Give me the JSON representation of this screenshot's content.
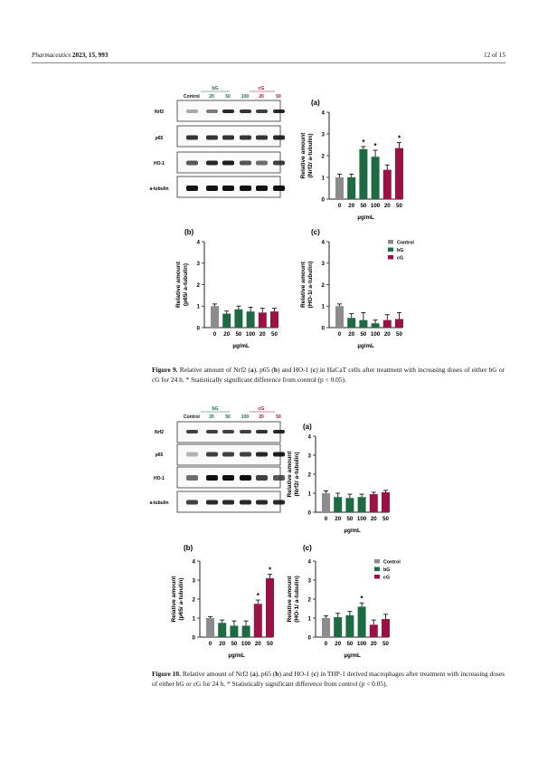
{
  "header": {
    "journal": "Pharmaceutics",
    "citation_rest": "2023, 15, 993",
    "page": "12 of 15"
  },
  "legend": {
    "items": [
      {
        "label": "Control",
        "color": "#8c8c8c"
      },
      {
        "label": "bG",
        "color": "#1e6b43"
      },
      {
        "label": "cG",
        "color": "#9b1345"
      }
    ]
  },
  "blot_labels": {
    "group_bg": "bG",
    "group_cg": "cG",
    "lanes": [
      "Control",
      "20",
      "50",
      "100",
      "20",
      "50"
    ],
    "rows": [
      "Nrf2",
      "p65",
      "HO-1",
      "a-tubulin"
    ]
  },
  "figures": [
    {
      "id": "fig9",
      "caption_label": "Figure 9.",
      "caption_parts": [
        "Relative amount of Nrf2 (",
        "a",
        "), p65 (",
        "b",
        ") and HO-1 (",
        "c",
        ") in HaCaT cells after treatment with increasing doses of either bG or cG for 24 h. * Statistically significant difference from control (p < 0.05)."
      ]
    },
    {
      "id": "fig10",
      "caption_label": "Figure 10.",
      "caption_parts": [
        "Relative amount of Nrf2 (",
        "a",
        "), p65 (",
        "b",
        ") and HO-1 (",
        "c",
        ") in THP-1 derived macrophages after treatment with increasing doses of either bG or cG for 24 h. * Statistically significant difference from control (p < 0.05)."
      ]
    }
  ],
  "chart_data": [
    {
      "id": "fig9a",
      "type": "bar",
      "panel": "(a)",
      "ylabel": "Relative amount (Nrf2/ a-tubulin)",
      "xlabel": "µg/mL",
      "categories": [
        "0",
        "20",
        "50",
        "100",
        "20",
        "50"
      ],
      "groups": [
        "Control",
        "bG",
        "bG",
        "bG",
        "cG",
        "cG"
      ],
      "values": [
        1.0,
        1.0,
        2.3,
        1.95,
        1.35,
        2.35
      ],
      "errors": [
        0.15,
        0.15,
        0.12,
        0.3,
        0.22,
        0.25
      ],
      "significant": [
        false,
        false,
        true,
        true,
        false,
        true
      ],
      "ylim": [
        0,
        4
      ],
      "yticks": [
        0,
        1,
        2,
        3,
        4
      ]
    },
    {
      "id": "fig9b",
      "type": "bar",
      "panel": "(b)",
      "ylabel": "Relative amount (p65/ a-tubulin)",
      "xlabel": "µg/mL",
      "categories": [
        "0",
        "20",
        "50",
        "100",
        "20",
        "50"
      ],
      "groups": [
        "Control",
        "bG",
        "bG",
        "bG",
        "cG",
        "cG"
      ],
      "values": [
        1.0,
        0.65,
        0.85,
        0.75,
        0.7,
        0.75
      ],
      "errors": [
        0.1,
        0.12,
        0.15,
        0.2,
        0.2,
        0.15
      ],
      "significant": [
        false,
        false,
        false,
        false,
        false,
        false
      ],
      "ylim": [
        0,
        4
      ],
      "yticks": [
        0,
        1,
        2,
        3,
        4
      ]
    },
    {
      "id": "fig9c",
      "type": "bar",
      "panel": "(c)",
      "ylabel": "Relative amount (HO-1/ a-tubulin)",
      "xlabel": "µg/mL",
      "categories": [
        "0",
        "20",
        "50",
        "100",
        "20",
        "50"
      ],
      "groups": [
        "Control",
        "bG",
        "bG",
        "bG",
        "cG",
        "cG"
      ],
      "values": [
        1.0,
        0.45,
        0.35,
        0.2,
        0.35,
        0.4
      ],
      "errors": [
        0.1,
        0.2,
        0.35,
        0.15,
        0.25,
        0.3
      ],
      "significant": [
        false,
        false,
        false,
        false,
        false,
        false
      ],
      "ylim": [
        0,
        4
      ],
      "yticks": [
        0,
        1,
        2,
        3,
        4
      ],
      "legend": true
    },
    {
      "id": "fig10a",
      "type": "bar",
      "panel": "(a)",
      "ylabel": "Relative amount (Nrf2/ a-tubulin)",
      "xlabel": "µg/mL",
      "categories": [
        "0",
        "20",
        "50",
        "100",
        "20",
        "50"
      ],
      "groups": [
        "Control",
        "bG",
        "bG",
        "bG",
        "cG",
        "cG"
      ],
      "values": [
        1.0,
        0.8,
        0.75,
        0.8,
        0.95,
        1.05
      ],
      "errors": [
        0.12,
        0.2,
        0.2,
        0.15,
        0.1,
        0.1
      ],
      "significant": [
        false,
        false,
        false,
        false,
        false,
        false
      ],
      "ylim": [
        0,
        4
      ],
      "yticks": [
        0,
        1,
        2,
        3,
        4
      ]
    },
    {
      "id": "fig10b",
      "type": "bar",
      "panel": "(b)",
      "ylabel": "Relative amount (p65/ a-tubulin)",
      "xlabel": "µg/mL",
      "categories": [
        "0",
        "20",
        "50",
        "100",
        "20",
        "50"
      ],
      "groups": [
        "Control",
        "bG",
        "bG",
        "bG",
        "cG",
        "cG"
      ],
      "values": [
        1.0,
        0.75,
        0.6,
        0.6,
        1.75,
        3.1
      ],
      "errors": [
        0.08,
        0.15,
        0.25,
        0.25,
        0.2,
        0.2
      ],
      "significant": [
        false,
        false,
        false,
        false,
        true,
        true
      ],
      "ylim": [
        0,
        4
      ],
      "yticks": [
        0,
        1,
        2,
        3,
        4
      ]
    },
    {
      "id": "fig10c",
      "type": "bar",
      "panel": "(c)",
      "ylabel": "Relative amount (HO-1/ a-tubulin)",
      "xlabel": "µg/mL",
      "categories": [
        "0",
        "20",
        "50",
        "100",
        "20",
        "50"
      ],
      "groups": [
        "Control",
        "bG",
        "bG",
        "bG",
        "cG",
        "cG"
      ],
      "values": [
        1.0,
        1.05,
        1.15,
        1.6,
        0.65,
        0.95
      ],
      "errors": [
        0.12,
        0.2,
        0.2,
        0.2,
        0.25,
        0.25
      ],
      "significant": [
        false,
        false,
        false,
        true,
        false,
        false
      ],
      "ylim": [
        0,
        4
      ],
      "yticks": [
        0,
        1,
        2,
        3,
        4
      ],
      "legend": true
    }
  ]
}
